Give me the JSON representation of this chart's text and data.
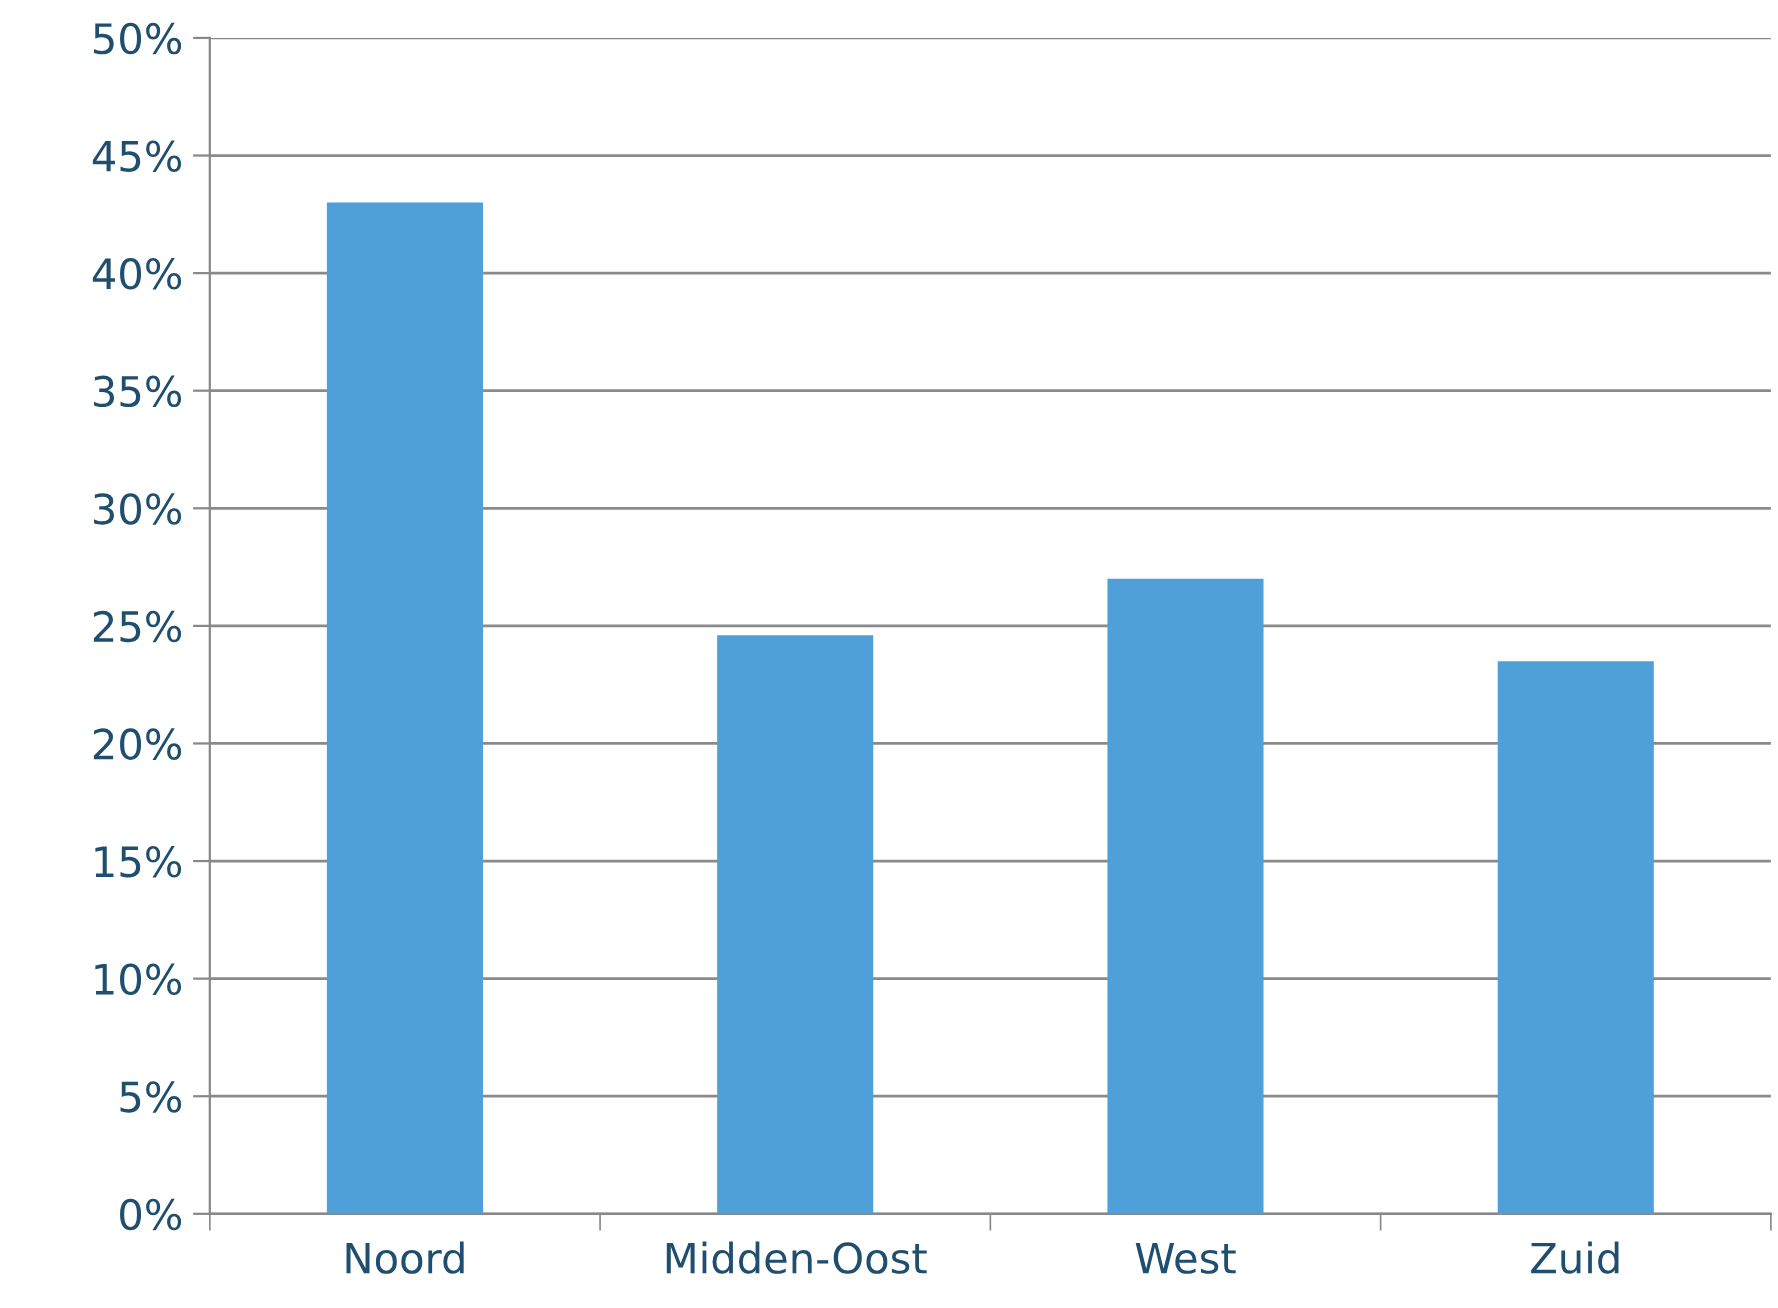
{
  "chart_data": {
    "type": "bar",
    "categories": [
      "Noord",
      "Midden-Oost",
      "West",
      "Zuid"
    ],
    "values": [
      43.0,
      24.6,
      27.0,
      23.5
    ],
    "color": "#4f9fd8",
    "ylim": [
      0,
      50
    ],
    "yticks": [
      {
        "value": 0,
        "label": "0%"
      },
      {
        "value": 5,
        "label": "5%"
      },
      {
        "value": 10,
        "label": "10%"
      },
      {
        "value": 15,
        "label": "15%"
      },
      {
        "value": 20,
        "label": "20%"
      },
      {
        "value": 25,
        "label": "25%"
      },
      {
        "value": 30,
        "label": "30%"
      },
      {
        "value": 35,
        "label": "35%"
      },
      {
        "value": 40,
        "label": "40%"
      },
      {
        "value": 45,
        "label": "45%"
      },
      {
        "value": 50,
        "label": "50%"
      }
    ],
    "grid": "y",
    "legend": false
  }
}
